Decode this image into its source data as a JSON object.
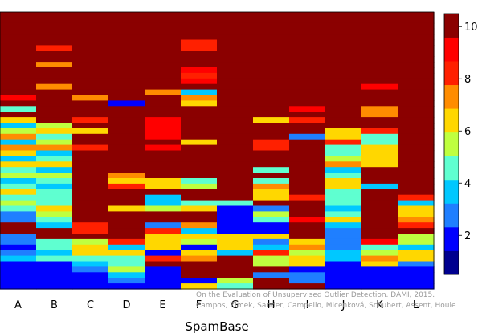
{
  "chart_data": {
    "type": "heatmap",
    "xlabel": "SpamBase",
    "categories": [
      "A",
      "B",
      "C",
      "D",
      "E",
      "F",
      "G",
      "H",
      "I",
      "J",
      "K",
      "L"
    ],
    "rows": 50,
    "row_order": "top-to-bottom",
    "value_range": [
      0.5,
      10.5
    ],
    "colorbar_ticks": [
      2,
      4,
      6,
      8,
      10
    ],
    "colormap": [
      "#00008f",
      "#0000ff",
      "#1f7fff",
      "#00c8ff",
      "#5fffd0",
      "#bfff3f",
      "#ffd700",
      "#ff8c00",
      "#ff2000",
      "#ff0000",
      "#8b0000"
    ],
    "columns": [
      [
        10,
        10,
        10,
        10,
        10,
        10,
        10,
        10,
        10,
        10,
        10,
        10,
        10,
        10,
        10,
        9,
        10,
        4,
        10,
        6,
        3,
        5,
        7,
        3,
        7,
        6,
        3,
        6,
        4,
        5,
        3,
        4,
        6,
        4,
        5,
        4,
        2,
        2,
        10,
        10,
        2,
        2,
        1,
        2,
        3,
        1,
        1,
        1,
        1,
        1
      ],
      [
        10,
        10,
        10,
        10,
        10,
        10,
        8,
        10,
        10,
        7,
        10,
        10,
        10,
        7,
        10,
        10,
        10,
        10,
        10,
        10,
        5,
        6,
        4,
        5,
        7,
        3,
        4,
        6,
        3,
        5,
        4,
        3,
        4,
        4,
        4,
        6,
        5,
        4,
        3,
        10,
        10,
        4,
        4,
        3,
        4,
        1,
        1,
        1,
        1,
        1
      ],
      [
        10,
        10,
        10,
        10,
        10,
        10,
        10,
        10,
        10,
        10,
        10,
        10,
        10,
        10,
        10,
        7,
        10,
        10,
        10,
        8,
        10,
        6,
        10,
        10,
        8,
        10,
        10,
        10,
        10,
        10,
        10,
        10,
        10,
        10,
        10,
        10,
        10,
        10,
        8,
        8,
        10,
        5,
        6,
        6,
        4,
        3,
        2,
        1,
        1,
        1
      ],
      [
        10,
        10,
        10,
        10,
        10,
        10,
        10,
        10,
        10,
        10,
        10,
        10,
        10,
        10,
        10,
        10,
        1,
        10,
        10,
        10,
        10,
        10,
        10,
        10,
        10,
        10,
        10,
        10,
        10,
        7,
        6,
        8,
        10,
        10,
        10,
        6,
        10,
        10,
        10,
        10,
        10,
        8,
        3,
        6,
        4,
        4,
        5,
        3,
        2,
        1
      ],
      [
        10,
        10,
        10,
        10,
        10,
        10,
        10,
        10,
        10,
        10,
        10,
        10,
        10,
        10,
        7,
        10,
        10,
        10,
        10,
        9,
        9,
        9,
        9,
        10,
        9,
        10,
        10,
        10,
        10,
        10,
        6,
        6,
        10,
        3,
        3,
        5,
        10,
        10,
        2,
        8,
        6,
        6,
        6,
        1,
        8,
        10,
        1,
        1,
        1,
        1
      ],
      [
        10,
        10,
        10,
        10,
        10,
        8,
        8,
        10,
        10,
        10,
        9,
        8,
        9,
        10,
        3,
        7,
        6,
        10,
        10,
        10,
        10,
        10,
        10,
        6,
        10,
        10,
        10,
        10,
        10,
        10,
        4,
        5,
        10,
        10,
        4,
        6,
        10,
        10,
        7,
        3,
        6,
        5,
        1,
        6,
        7,
        10,
        10,
        10,
        1,
        6
      ],
      [
        10,
        10,
        10,
        10,
        10,
        10,
        10,
        10,
        10,
        10,
        10,
        10,
        10,
        10,
        10,
        10,
        10,
        10,
        10,
        10,
        10,
        10,
        10,
        10,
        10,
        10,
        10,
        10,
        10,
        10,
        10,
        10,
        10,
        10,
        4,
        1,
        1,
        1,
        1,
        1,
        6,
        6,
        6,
        3,
        10,
        10,
        10,
        10,
        5,
        4
      ],
      [
        10,
        10,
        10,
        10,
        10,
        10,
        10,
        10,
        10,
        10,
        10,
        10,
        10,
        10,
        10,
        10,
        10,
        10,
        10,
        6,
        10,
        10,
        10,
        8,
        8,
        10,
        10,
        10,
        4,
        10,
        4,
        7,
        6,
        6,
        10,
        2,
        5,
        4,
        1,
        1,
        6,
        2,
        3,
        8,
        5,
        5,
        10,
        2,
        10,
        10
      ],
      [
        10,
        10,
        10,
        10,
        10,
        10,
        10,
        10,
        10,
        10,
        10,
        10,
        10,
        10,
        10,
        10,
        10,
        9,
        10,
        8,
        10,
        10,
        2,
        10,
        10,
        10,
        10,
        10,
        10,
        10,
        10,
        10,
        10,
        8,
        10,
        10,
        10,
        9,
        10,
        10,
        10,
        6,
        7,
        5,
        6,
        6,
        1,
        2,
        2,
        10
      ],
      [
        10,
        10,
        10,
        10,
        10,
        10,
        10,
        10,
        10,
        10,
        10,
        10,
        10,
        10,
        10,
        10,
        10,
        10,
        10,
        10,
        10,
        6,
        6,
        8,
        4,
        4,
        5,
        7,
        3,
        4,
        6,
        6,
        4,
        4,
        4,
        3,
        4,
        6,
        3,
        2,
        2,
        2,
        2,
        3,
        3,
        1,
        1,
        1,
        1,
        1
      ],
      [
        10,
        10,
        10,
        10,
        10,
        10,
        10,
        10,
        10,
        10,
        10,
        10,
        10,
        9,
        10,
        10,
        10,
        7,
        7,
        10,
        10,
        8,
        4,
        4,
        6,
        6,
        6,
        6,
        10,
        10,
        10,
        3,
        10,
        10,
        10,
        10,
        10,
        10,
        10,
        10,
        10,
        9,
        4,
        5,
        7,
        6,
        1,
        1,
        1,
        1
      ],
      [
        10,
        10,
        10,
        10,
        10,
        10,
        10,
        10,
        10,
        10,
        10,
        10,
        10,
        10,
        10,
        10,
        10,
        10,
        10,
        10,
        10,
        10,
        10,
        10,
        10,
        10,
        10,
        10,
        10,
        10,
        10,
        10,
        10,
        8,
        3,
        6,
        6,
        7,
        8,
        10,
        5,
        5,
        3,
        6,
        6,
        2,
        1,
        1,
        1,
        1
      ]
    ],
    "credit_lines": [
      "On the Evaluation of Unsupervised Outlier Detection. DAMI, 2015.",
      "Campos, Zimek, Sander, Campello, Micenková, Schubert, Assent, Houle"
    ]
  }
}
